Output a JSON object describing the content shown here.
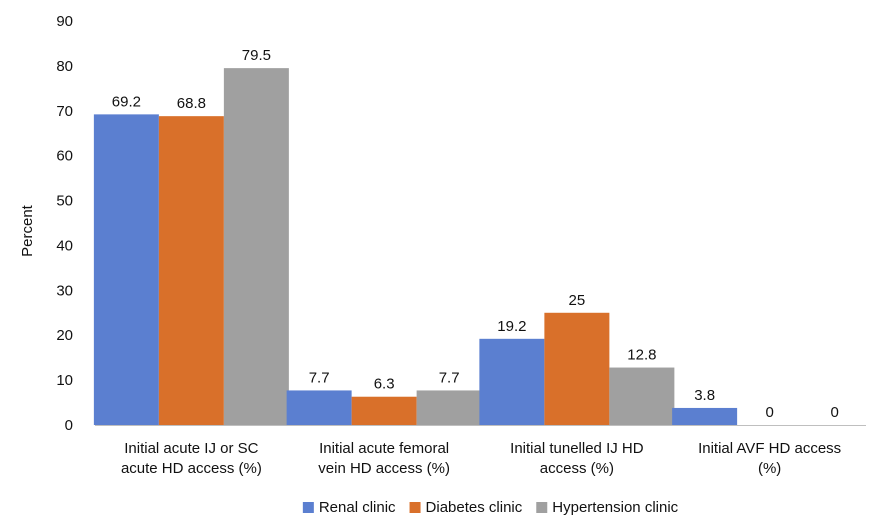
{
  "chart_data": {
    "type": "bar",
    "title": "",
    "xlabel": "",
    "ylabel": "Percent",
    "ylim": [
      0,
      90
    ],
    "yticks": [
      0,
      10,
      20,
      30,
      40,
      50,
      60,
      70,
      80,
      90
    ],
    "grid": false,
    "legend_position": "bottom",
    "categories": [
      [
        "Initial acute IJ or SC",
        "acute HD access (%)"
      ],
      [
        "Initial acute femoral",
        "vein HD access (%)"
      ],
      [
        "Initial tunelled IJ HD",
        "access (%)"
      ],
      [
        "Initial AVF HD access",
        "(%)"
      ]
    ],
    "series": [
      {
        "name": "Renal clinic",
        "color": "#5b7fd0",
        "values": [
          69.2,
          7.7,
          19.2,
          3.8
        ],
        "labels": [
          "69.2",
          "7.7",
          "19.2",
          "3.8"
        ]
      },
      {
        "name": "Diabetes clinic",
        "color": "#d9702a",
        "values": [
          68.8,
          6.3,
          25,
          0
        ],
        "labels": [
          "68.8",
          "6.3",
          "25",
          "0"
        ]
      },
      {
        "name": "Hypertension clinic",
        "color": "#a0a0a0",
        "values": [
          79.5,
          7.7,
          12.8,
          0
        ],
        "labels": [
          "79.5",
          "7.7",
          "12.8",
          "0"
        ]
      }
    ]
  }
}
